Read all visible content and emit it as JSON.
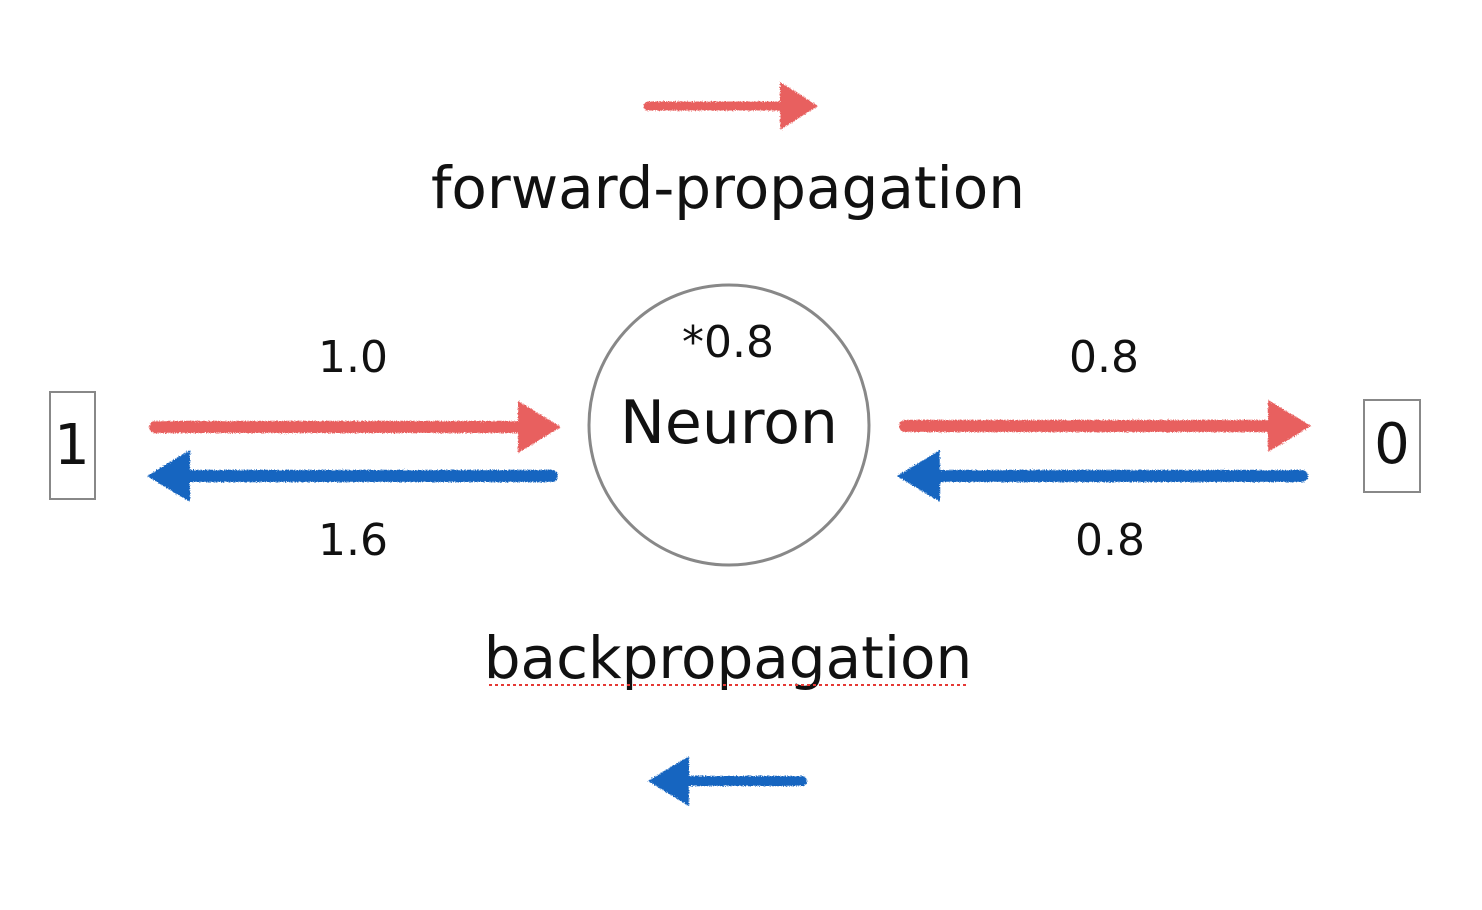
{
  "colors": {
    "forward": "#e8605e",
    "backward": "#1565c0",
    "neuron_stroke": "#888888",
    "box_stroke": "#888888",
    "text": "#111111",
    "spell_underline": "#e53935"
  },
  "diagram": {
    "forward_label": "forward-propagation",
    "backward_label": "backpropagation",
    "input_value": "1",
    "output_value": "0",
    "neuron_label": "Neuron",
    "neuron_weight": "*0.8",
    "left_forward_value": "1.0",
    "left_backward_value": "1.6",
    "right_forward_value": "0.8",
    "right_backward_value": "0.8"
  }
}
